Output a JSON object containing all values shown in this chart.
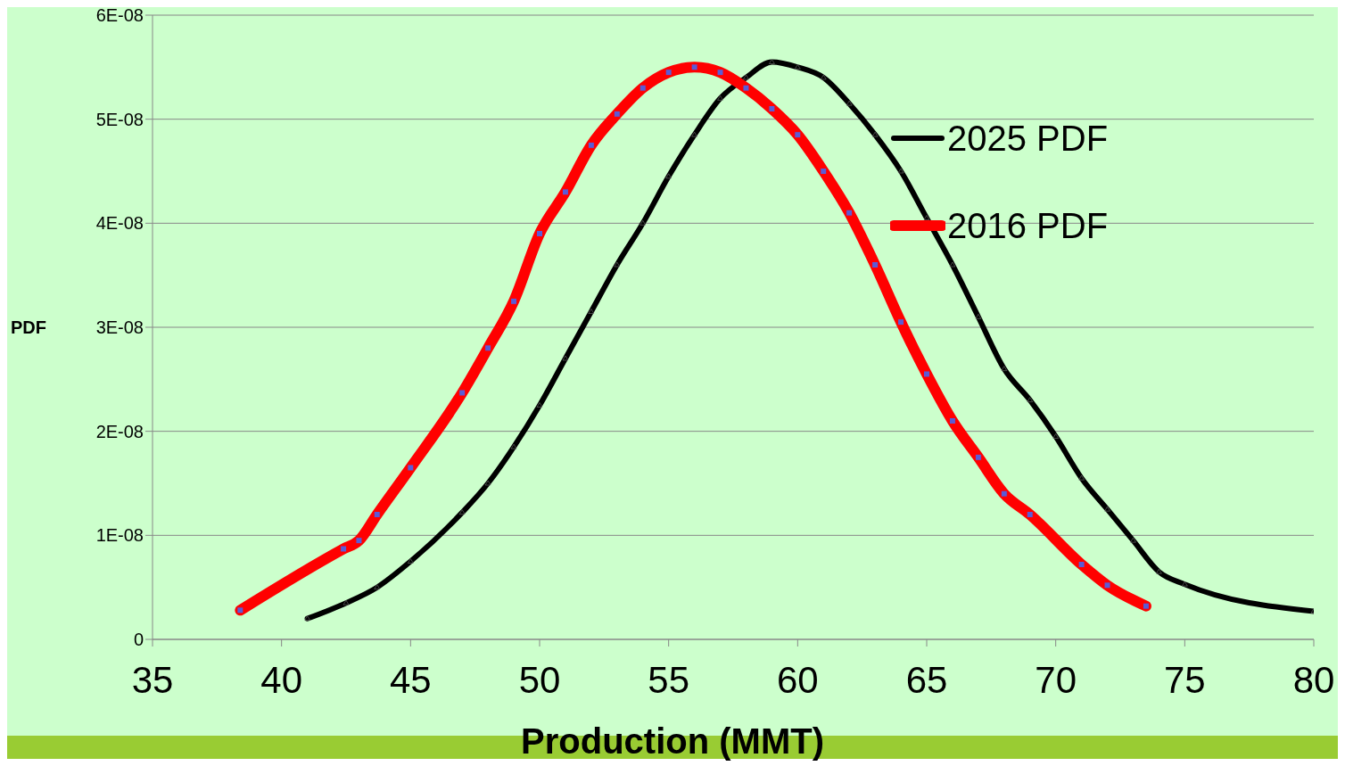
{
  "chart_data": {
    "type": "line",
    "xlabel": "Production (MMT)",
    "ylabel": "PDF",
    "xlim": [
      35,
      80
    ],
    "xticks": [
      35,
      40,
      45,
      50,
      55,
      60,
      65,
      70,
      75,
      80
    ],
    "ylim": [
      0,
      6e-08
    ],
    "yticks": [
      0,
      {
        "value": 1e-08,
        "label": "1E-08"
      },
      {
        "value": 2e-08,
        "label": "2E-08"
      },
      {
        "value": 3e-08,
        "label": "3E-08"
      },
      {
        "value": 4e-08,
        "label": "4E-08"
      },
      {
        "value": 5e-08,
        "label": "5E-08"
      },
      {
        "value": 6e-08,
        "label": "6E-08"
      }
    ],
    "grid": "y",
    "legend": "top right",
    "line_style": "solid",
    "series": [
      {
        "name": "2025 PDF",
        "color": "#000000",
        "marker": "triangle",
        "x": [
          41,
          42.5,
          43.7,
          45,
          47,
          48,
          49,
          50,
          51,
          52,
          53,
          54,
          55,
          56,
          57,
          58,
          59,
          60,
          61,
          62,
          63,
          64,
          65,
          66,
          67,
          68,
          69,
          70,
          71,
          72,
          73,
          74,
          75,
          80
        ],
        "values": [
          2e-09,
          3.5e-09,
          5e-09,
          7.5e-09,
          1.22e-08,
          1.5e-08,
          1.85e-08,
          2.25e-08,
          2.7e-08,
          3.15e-08,
          3.6e-08,
          4e-08,
          4.45e-08,
          4.85e-08,
          5.2e-08,
          5.4e-08,
          5.55e-08,
          5.5e-08,
          5.4e-08,
          5.15e-08,
          4.85e-08,
          4.5e-08,
          4.05e-08,
          3.6e-08,
          3.1e-08,
          2.6e-08,
          2.3e-08,
          1.95e-08,
          1.55e-08,
          1.25e-08,
          9.5e-09,
          6.5e-09,
          5.3e-09,
          2.7e-09
        ]
      },
      {
        "name": "2016 PDF",
        "color": "#ff0000",
        "marker": "square",
        "x": [
          38.4,
          42.4,
          43,
          43.7,
          45,
          47,
          48,
          49,
          50,
          51,
          52,
          53,
          54,
          55,
          56,
          57,
          58,
          59,
          60,
          61,
          62,
          63,
          64,
          65,
          66,
          67,
          68,
          69,
          71,
          72,
          73.5
        ],
        "values": [
          2.8e-09,
          8.7e-09,
          9.5e-09,
          1.2e-08,
          1.65e-08,
          2.37e-08,
          2.8e-08,
          3.25e-08,
          3.9e-08,
          4.3e-08,
          4.75e-08,
          5.05e-08,
          5.3e-08,
          5.45e-08,
          5.5e-08,
          5.45e-08,
          5.3e-08,
          5.1e-08,
          4.85e-08,
          4.5e-08,
          4.1e-08,
          3.6e-08,
          3.05e-08,
          2.55e-08,
          2.1e-08,
          1.75e-08,
          1.4e-08,
          1.2e-08,
          7.2e-09,
          5.2e-09,
          3.2e-09
        ]
      }
    ]
  }
}
